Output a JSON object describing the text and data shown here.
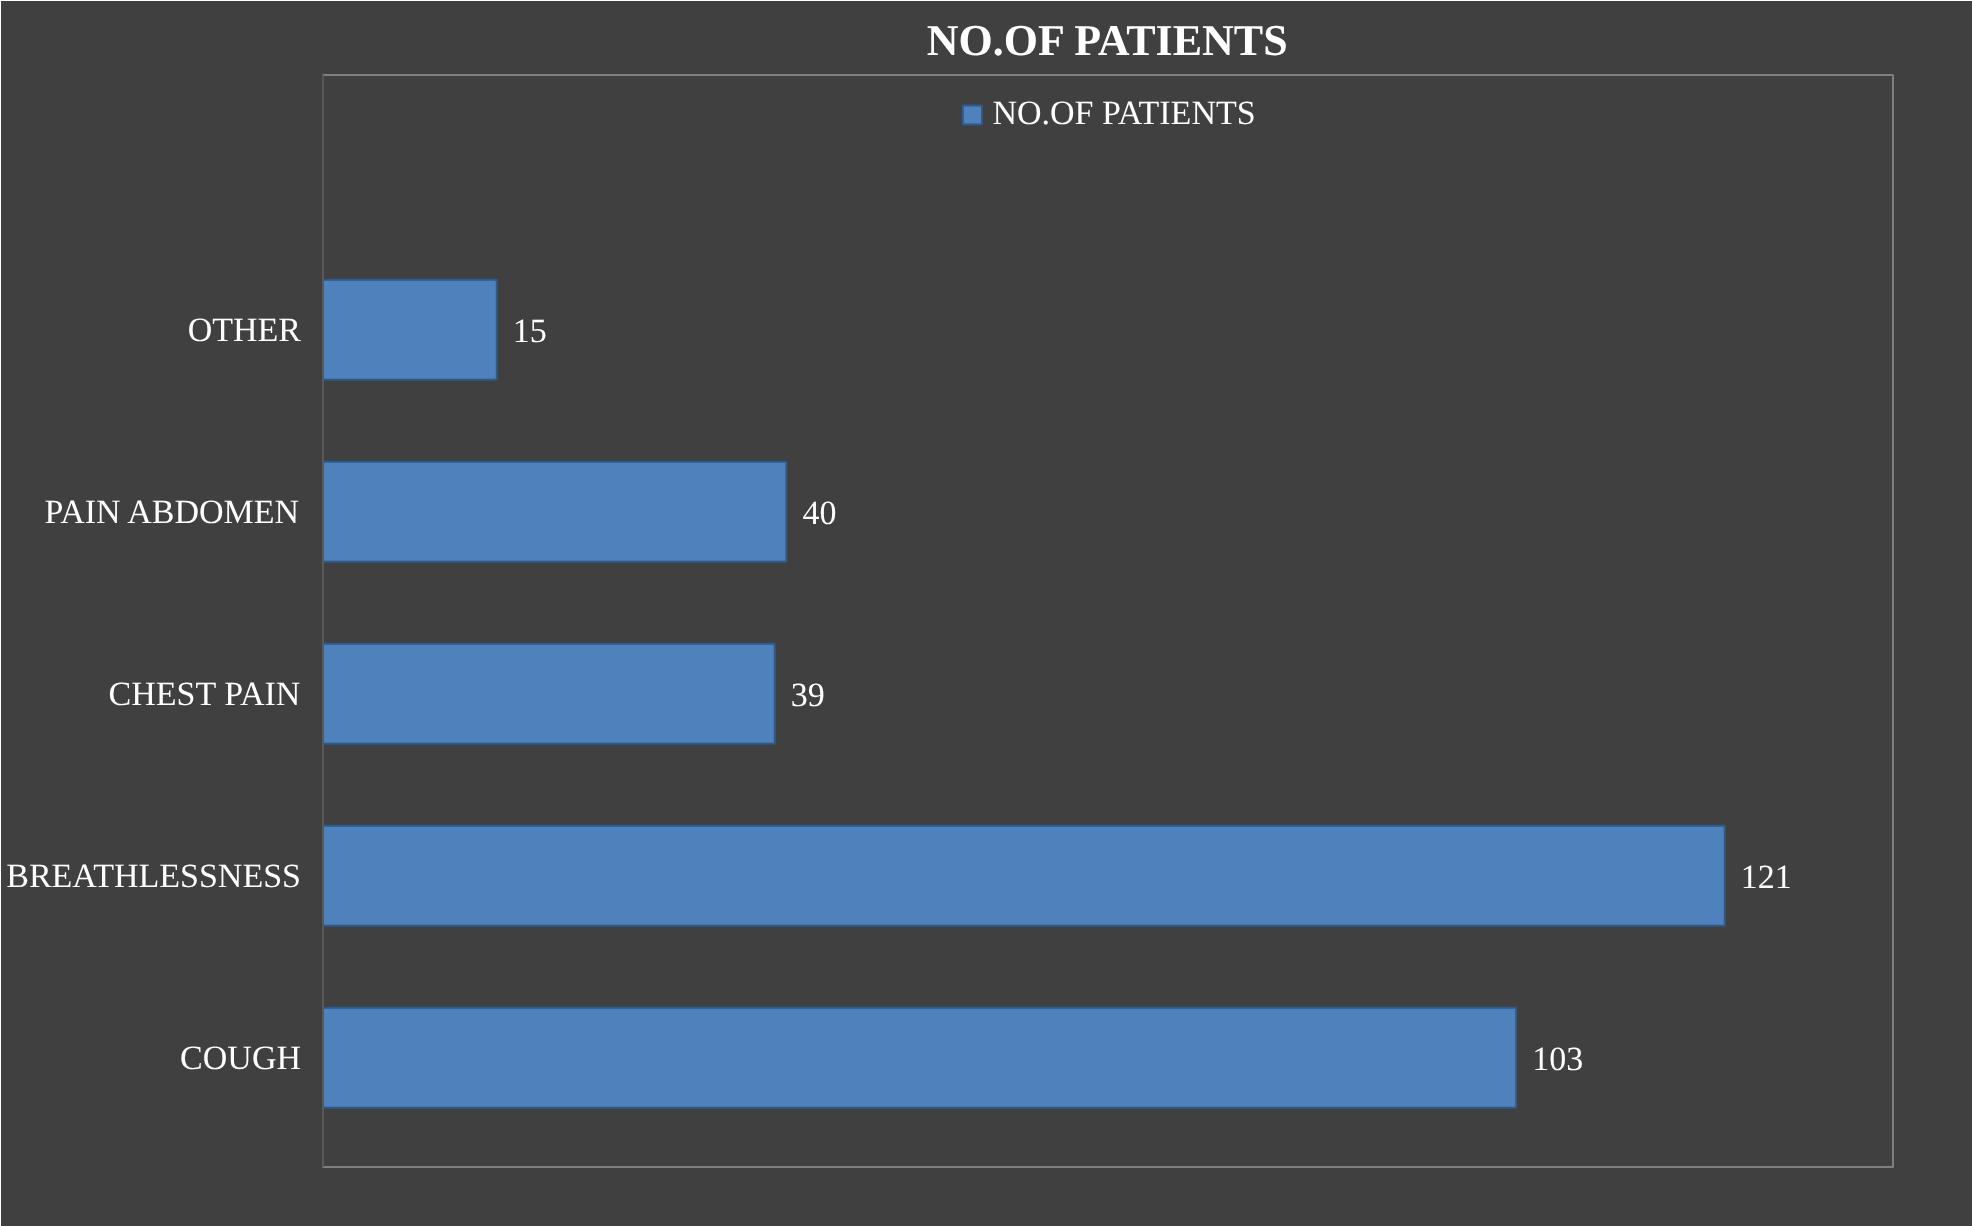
{
  "chart_data": {
    "type": "bar",
    "orientation": "horizontal",
    "title": "NO.OF PATIENTS",
    "categories": [
      "OTHER",
      "PAIN ABDOMEN",
      "CHEST PAIN",
      "BREATHLESSNESS",
      "COUGH"
    ],
    "series": [
      {
        "name": "NO.OF PATIENTS",
        "color": "#4f81bd",
        "values": [
          15,
          40,
          39,
          121,
          103
        ]
      }
    ],
    "data_labels": true,
    "legend": "top",
    "grid": false,
    "tick_labels": "y"
  }
}
